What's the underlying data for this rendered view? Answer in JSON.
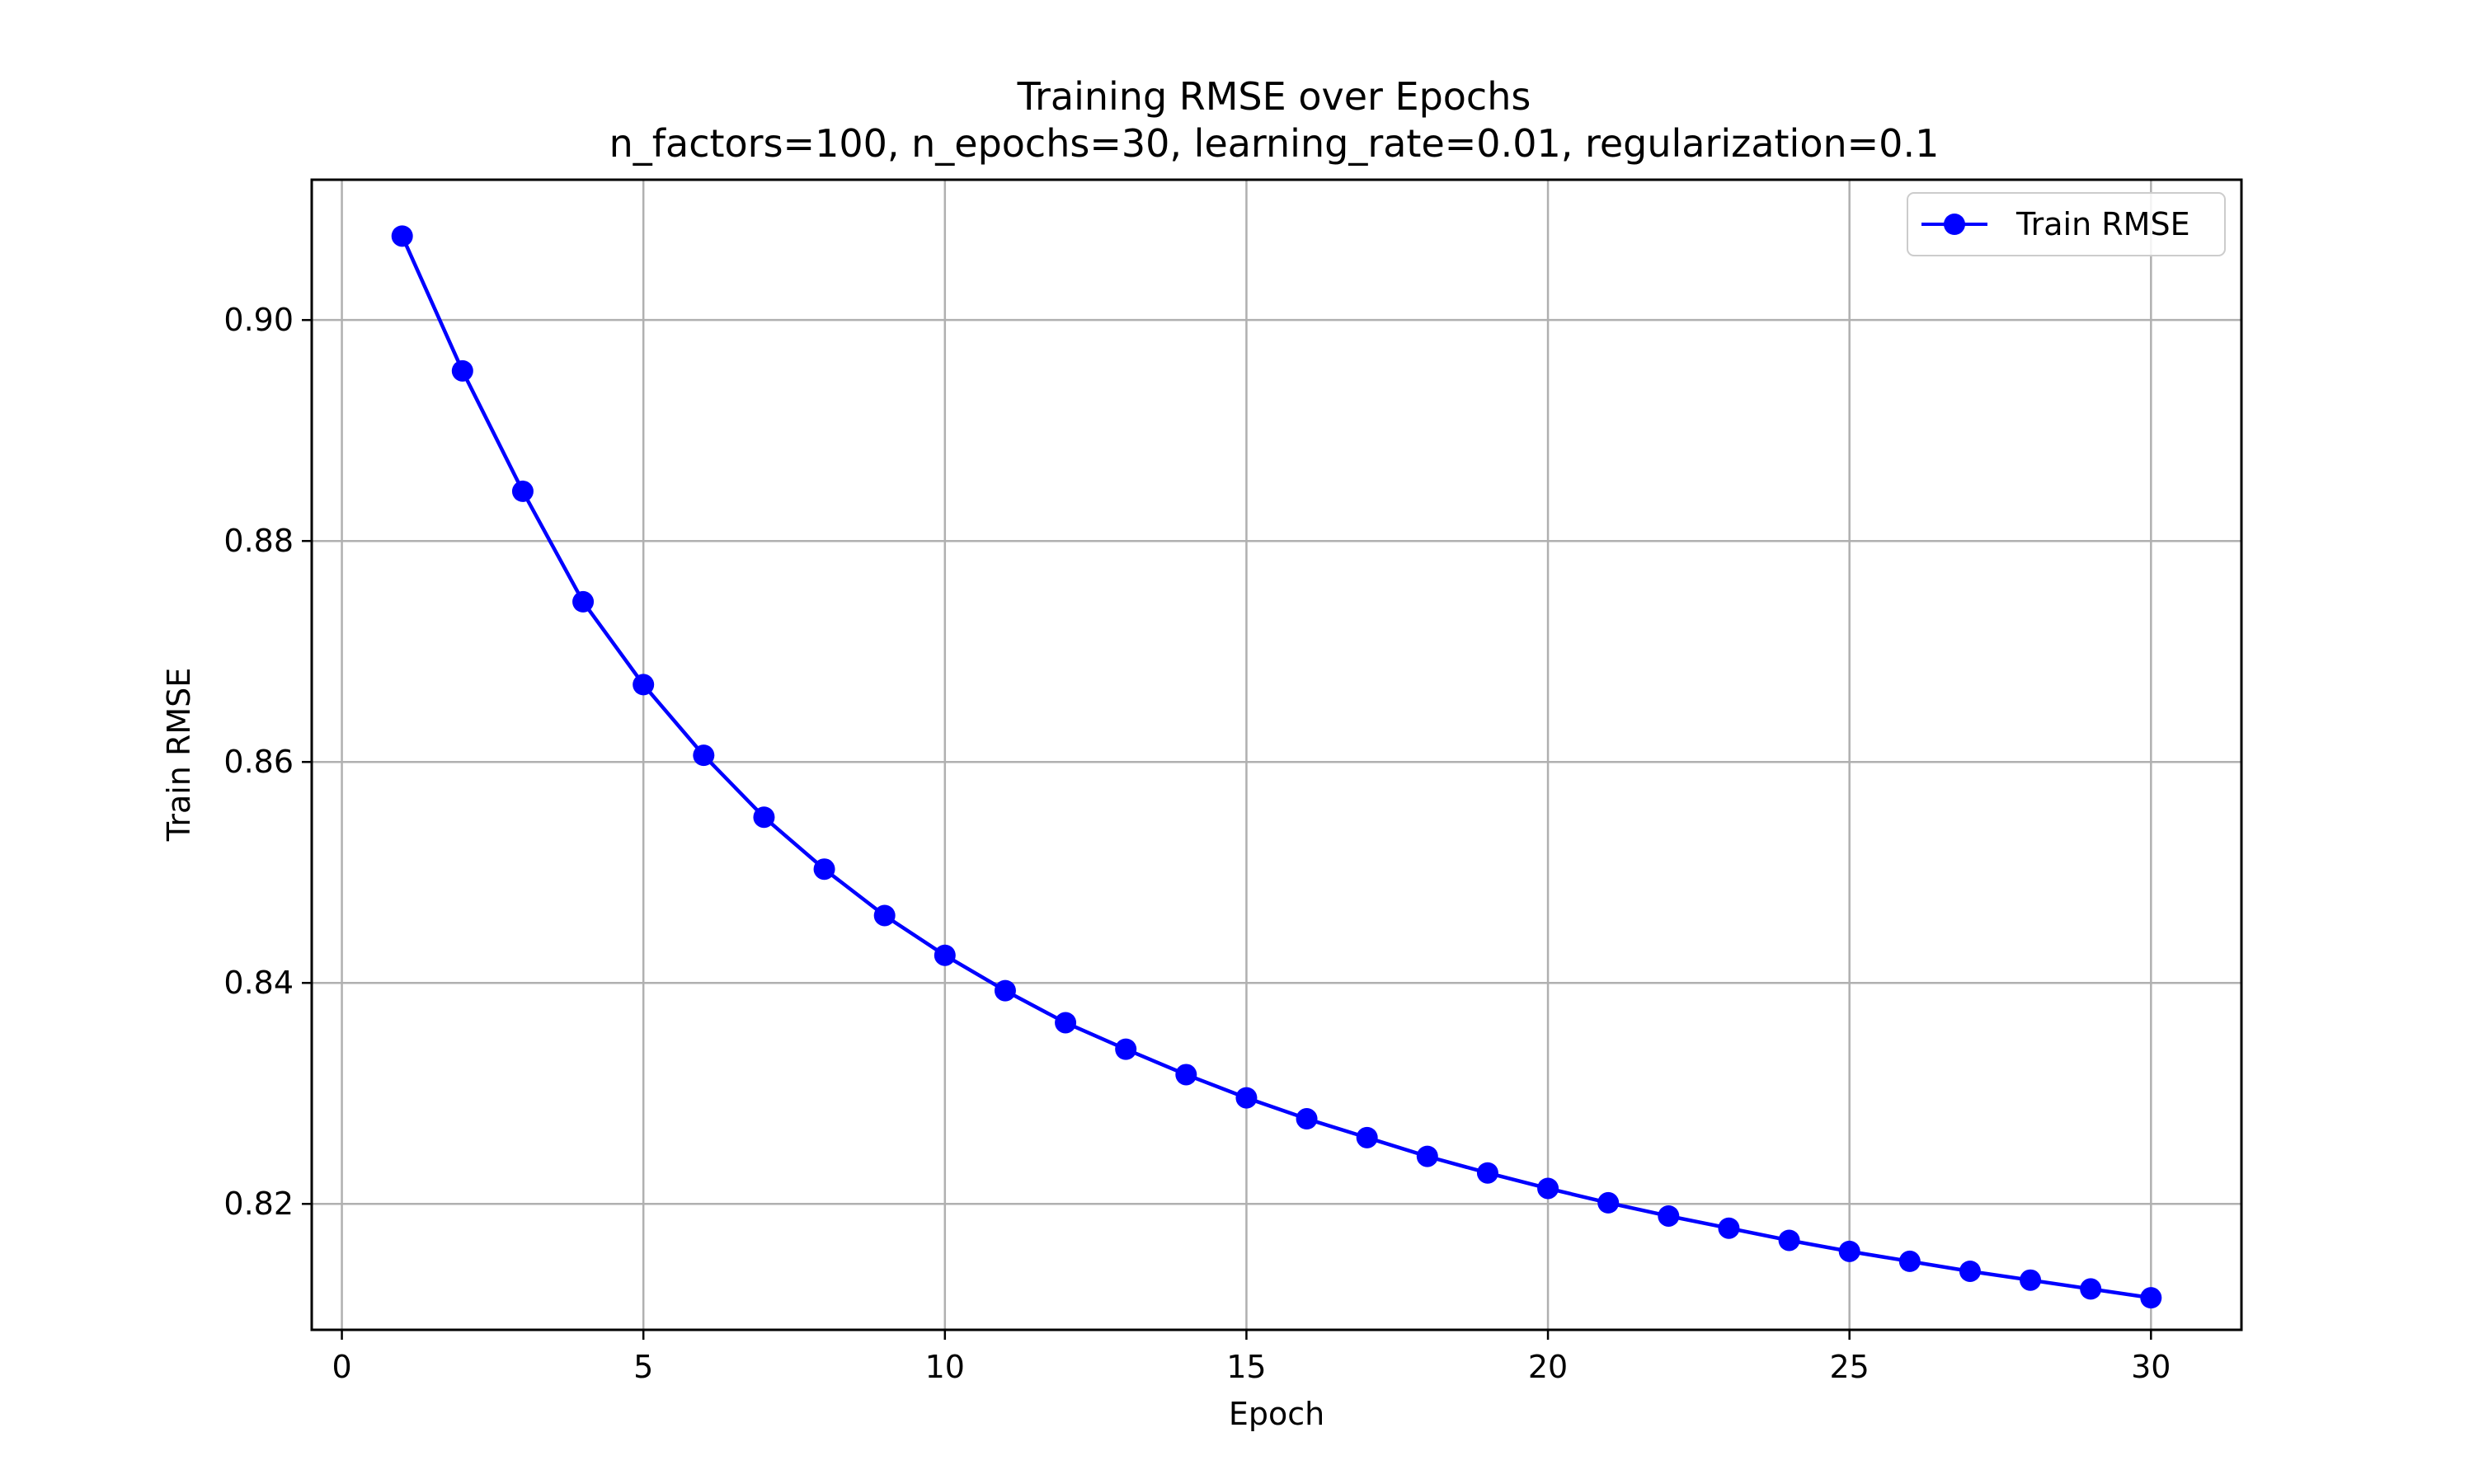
{
  "chart_data": {
    "type": "line",
    "title": "Training RMSE over Epochs",
    "subtitle": "n_factors=100, n_epochs=30, learning_rate=0.01, regularization=0.1",
    "xlabel": "Epoch",
    "ylabel": "Train RMSE",
    "xlim": [
      -0.5,
      31.5
    ],
    "ylim": [
      0.8086,
      0.9127
    ],
    "xticks": [
      0,
      5,
      10,
      15,
      20,
      25,
      30
    ],
    "xtick_labels": [
      "0",
      "5",
      "10",
      "15",
      "20",
      "25",
      "30"
    ],
    "yticks": [
      0.82,
      0.84,
      0.86,
      0.88,
      0.9
    ],
    "ytick_labels": [
      "0.82",
      "0.84",
      "0.86",
      "0.88",
      "0.90"
    ],
    "grid": true,
    "legend_position": "top-right",
    "series": [
      {
        "name": "Train RMSE",
        "color": "#0000ff",
        "marker": "circle",
        "x": [
          1,
          2,
          3,
          4,
          5,
          6,
          7,
          8,
          9,
          10,
          11,
          12,
          13,
          14,
          15,
          16,
          17,
          18,
          19,
          20,
          21,
          22,
          23,
          24,
          25,
          26,
          27,
          28,
          29,
          30
        ],
        "values": [
          0.9076,
          0.8954,
          0.8845,
          0.8745,
          0.867,
          0.8606,
          0.855,
          0.8503,
          0.8461,
          0.8425,
          0.8393,
          0.8364,
          0.834,
          0.8317,
          0.8296,
          0.8277,
          0.826,
          0.8243,
          0.8228,
          0.8214,
          0.8201,
          0.8189,
          0.8178,
          0.8167,
          0.8157,
          0.8148,
          0.8139,
          0.8131,
          0.8123,
          0.8115
        ]
      }
    ]
  }
}
